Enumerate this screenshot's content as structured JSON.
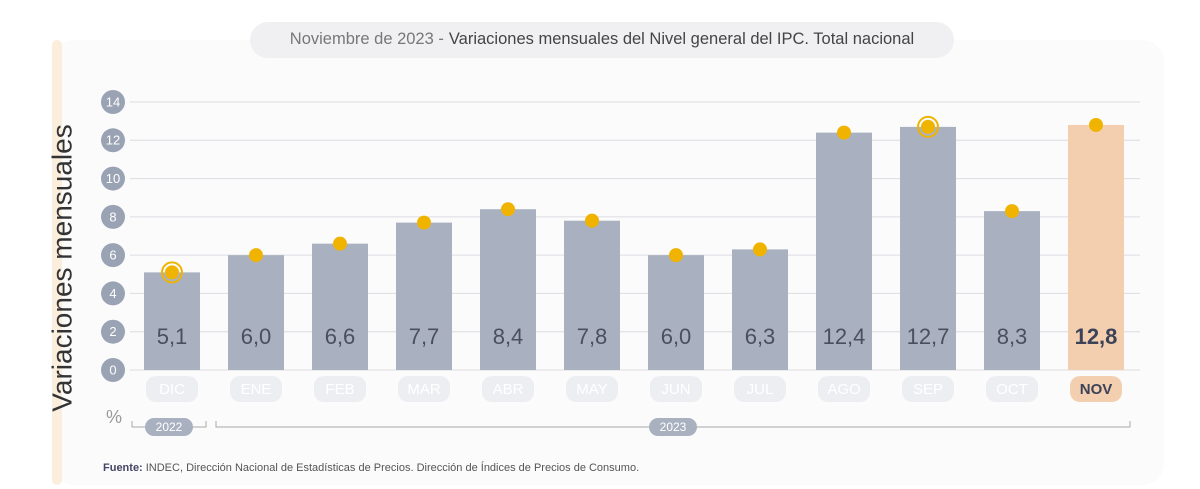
{
  "chart_data": {
    "type": "bar",
    "title_prefix": "Noviembre de 2023 -",
    "title": "Variaciones mensuales del Nivel general del IPC. Total nacional",
    "y_label": "Variaciones mensuales",
    "unit_label": "%",
    "categories": [
      "DIC",
      "ENE",
      "FEB",
      "MAR",
      "ABR",
      "MAY",
      "JUN",
      "JUL",
      "AGO",
      "SEP",
      "OCT",
      "NOV"
    ],
    "values": [
      5.1,
      6.0,
      6.6,
      7.7,
      8.4,
      7.8,
      6.0,
      6.3,
      12.4,
      12.7,
      8.3,
      12.8
    ],
    "value_labels": [
      "5,1",
      "6,0",
      "6,6",
      "7,7",
      "8,4",
      "7,8",
      "6,0",
      "6,3",
      "12,4",
      "12,7",
      "8,3",
      "12,8"
    ],
    "bar_colors": [
      "#a9b1c0",
      "#a9b1c0",
      "#a9b1c0",
      "#a9b1c0",
      "#a9b1c0",
      "#a9b1c0",
      "#a9b1c0",
      "#a9b1c0",
      "#a9b1c0",
      "#a9b1c0",
      "#a9b1c0",
      "#f3cfb0"
    ],
    "emphasis": [
      false,
      false,
      false,
      false,
      false,
      false,
      false,
      false,
      false,
      false,
      false,
      true
    ],
    "marker_color": "#f0b400",
    "marker_ring": [
      true,
      false,
      false,
      false,
      false,
      false,
      false,
      false,
      false,
      true,
      false,
      false
    ],
    "ylim": [
      0,
      14
    ],
    "yticks": [
      0,
      2,
      4,
      6,
      8,
      10,
      12,
      14
    ],
    "grid": true,
    "year_groups": [
      {
        "label": "2022",
        "from": 0,
        "to": 0
      },
      {
        "label": "2023",
        "from": 1,
        "to": 11
      }
    ],
    "source_label": "Fuente:",
    "source": "INDEC, Dirección Nacional de Estadísticas de Precios. Dirección de Índices de Precios de Consumo."
  }
}
